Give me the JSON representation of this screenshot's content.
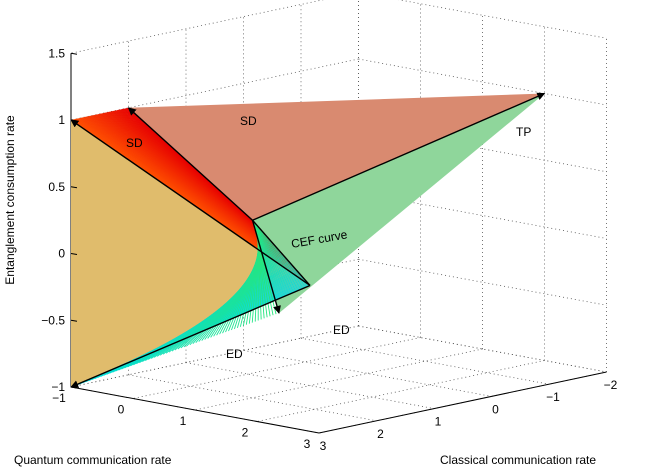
{
  "chart_data": {
    "type": "surface3d",
    "axes": {
      "x": {
        "label": "Quantum communication rate",
        "range": [
          -1,
          3
        ],
        "ticks": [
          "−1",
          "0",
          "1",
          "2",
          "3"
        ]
      },
      "y": {
        "label": "Classical communication rate",
        "range": [
          -2,
          3
        ],
        "ticks": [
          "−2",
          "−1",
          "0",
          "1",
          "2",
          "3"
        ]
      },
      "z": {
        "label": "Entanglement consumption rate",
        "range": [
          -1,
          1.5
        ],
        "ticks": [
          "−1",
          "−0.5",
          "0",
          "0.5",
          "1",
          "1.5"
        ]
      }
    },
    "grid": true,
    "points": {
      "cef_top": [
        1,
        2,
        0.33
      ],
      "cef_bottom": [
        1,
        1,
        -0.25
      ],
      "sd_upper": [
        -1,
        2,
        1
      ],
      "sd_left": [
        -1,
        3,
        1
      ],
      "tp": [
        2,
        -2,
        1
      ],
      "ed_right": [
        0.5,
        1,
        -0.5
      ],
      "ed_left": [
        -1,
        3,
        -1
      ]
    },
    "surfaces": [
      {
        "name": "tp-face",
        "color": "#d98a70"
      },
      {
        "name": "sd-face",
        "color": "#e0bc6c"
      },
      {
        "name": "ed-face",
        "color": "#8fd69b"
      }
    ],
    "annotations": [
      {
        "id": "sd-left",
        "text": "SD"
      },
      {
        "id": "sd-upper",
        "text": "SD"
      },
      {
        "id": "tp",
        "text": "TP"
      },
      {
        "id": "ed-left",
        "text": "ED"
      },
      {
        "id": "ed-right",
        "text": "ED"
      },
      {
        "id": "cef",
        "text": "CEF curve"
      }
    ]
  }
}
